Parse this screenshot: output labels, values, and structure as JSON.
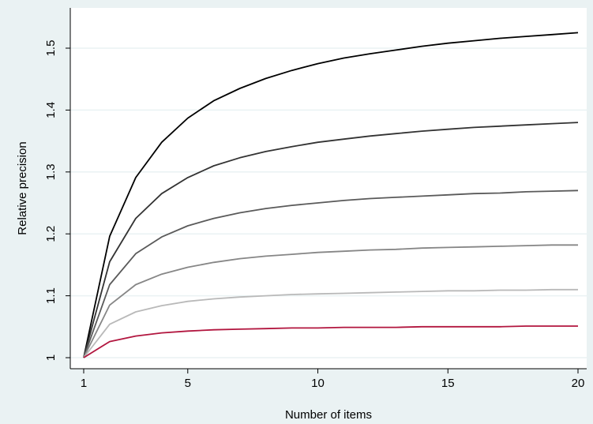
{
  "chart_data": {
    "type": "line",
    "title": "",
    "xlabel": "Number of items",
    "ylabel": "Relative precision",
    "xlim": [
      1,
      20
    ],
    "ylim": [
      1,
      1.52
    ],
    "xticks": [
      1,
      5,
      10,
      15,
      20
    ],
    "yticks": [
      1,
      1.1,
      1.2,
      1.3,
      1.4,
      1.5
    ],
    "ytick_labels": [
      "1",
      "1.1",
      "1.2",
      "1.3",
      "1.4",
      "1.5"
    ],
    "grid": "horizontal",
    "legend": "none",
    "x": [
      1,
      2,
      3,
      4,
      5,
      6,
      7,
      8,
      9,
      10,
      11,
      12,
      13,
      14,
      15,
      16,
      17,
      18,
      19,
      20
    ],
    "series": [
      {
        "color": "#000000",
        "values": [
          1.0,
          1.196,
          1.291,
          1.348,
          1.387,
          1.415,
          1.435,
          1.451,
          1.464,
          1.475,
          1.484,
          1.491,
          1.497,
          1.503,
          1.508,
          1.512,
          1.516,
          1.519,
          1.522,
          1.525
        ]
      },
      {
        "color": "#333333",
        "values": [
          1.0,
          1.155,
          1.225,
          1.265,
          1.291,
          1.31,
          1.323,
          1.333,
          1.341,
          1.348,
          1.353,
          1.358,
          1.362,
          1.366,
          1.369,
          1.372,
          1.374,
          1.376,
          1.378,
          1.38
        ]
      },
      {
        "color": "#5a5a5a",
        "values": [
          1.0,
          1.118,
          1.168,
          1.195,
          1.213,
          1.225,
          1.234,
          1.241,
          1.246,
          1.25,
          1.254,
          1.257,
          1.259,
          1.261,
          1.263,
          1.265,
          1.266,
          1.268,
          1.269,
          1.27
        ]
      },
      {
        "color": "#868686",
        "values": [
          1.0,
          1.085,
          1.118,
          1.135,
          1.146,
          1.154,
          1.16,
          1.164,
          1.167,
          1.17,
          1.172,
          1.174,
          1.175,
          1.177,
          1.178,
          1.179,
          1.18,
          1.181,
          1.182,
          1.182
        ]
      },
      {
        "color": "#b9b9b9",
        "values": [
          1.0,
          1.054,
          1.074,
          1.084,
          1.091,
          1.095,
          1.098,
          1.1,
          1.102,
          1.103,
          1.104,
          1.105,
          1.106,
          1.107,
          1.108,
          1.108,
          1.109,
          1.109,
          1.11,
          1.11
        ]
      },
      {
        "color": "#b2163f",
        "values": [
          1.0,
          1.026,
          1.035,
          1.04,
          1.043,
          1.045,
          1.046,
          1.047,
          1.048,
          1.048,
          1.049,
          1.049,
          1.049,
          1.05,
          1.05,
          1.05,
          1.05,
          1.051,
          1.051,
          1.051
        ]
      }
    ]
  }
}
